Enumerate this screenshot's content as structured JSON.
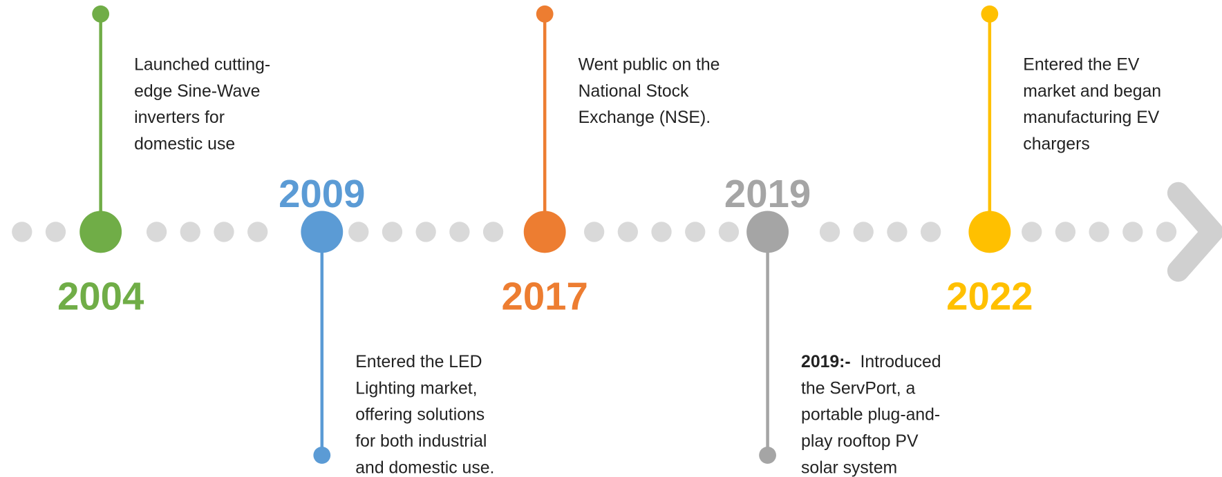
{
  "events": [
    {
      "year": "2004",
      "color": "#70ad47",
      "side": "up",
      "lines": [
        "Launched cutting-",
        "edge Sine-Wave",
        "inverters for",
        "domestic use"
      ]
    },
    {
      "year": "2009",
      "color": "#5b9bd5",
      "side": "down",
      "lines": [
        "Entered the LED",
        "Lighting market,",
        "offering solutions",
        "for both industrial",
        "and domestic use."
      ]
    },
    {
      "year": "2017",
      "color": "#ed7d31",
      "side": "up",
      "lines": [
        "Went public on the",
        "National Stock",
        "Exchange (NSE)."
      ]
    },
    {
      "year": "2019",
      "color": "#a5a5a5",
      "side": "down",
      "prefix": "2019:-",
      "lines": [
        "Introduced",
        "the ServPort, a",
        "portable plug-and-",
        "play rooftop PV",
        "solar system"
      ]
    },
    {
      "year": "2022",
      "color": "#ffc000",
      "side": "up",
      "lines": [
        "Entered the EV",
        "market and began",
        "manufacturing EV",
        "chargers"
      ]
    }
  ]
}
